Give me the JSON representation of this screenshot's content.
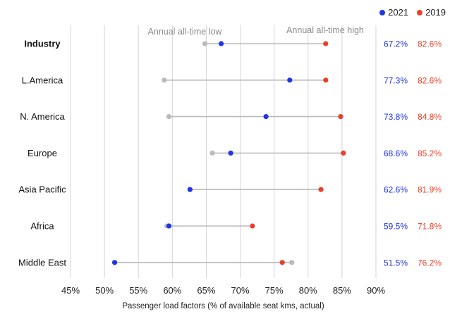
{
  "chart_data": {
    "type": "dumbbell",
    "xlabel": "Passenger load factors (% of available seat kms, actual)",
    "xlim": [
      45,
      90
    ],
    "x_ticks": [
      "45%",
      "50%",
      "55%",
      "60%",
      "65%",
      "70%",
      "75%",
      "80%",
      "85%",
      "90%"
    ],
    "grid": "vertical",
    "legend_position": "top-right",
    "annotations": [
      "Annual all-time low",
      "Annual all-time high"
    ],
    "series": [
      {
        "name": "2021",
        "color": "#1f35e8"
      },
      {
        "name": "2019",
        "color": "#e8402a"
      }
    ],
    "range_color": "#bbbbbb",
    "rows": [
      {
        "category": "Industry",
        "bold": true,
        "all_time_low": 64.8,
        "v2021": 67.2,
        "v2019": 82.6,
        "label2021": "67.2%",
        "label2019": "82.6%"
      },
      {
        "category": "L.America",
        "all_time_low": 58.8,
        "v2021": 77.3,
        "v2019": 82.6,
        "label2021": "77.3%",
        "label2019": "82.6%"
      },
      {
        "category": "N. America",
        "all_time_low": 59.5,
        "v2021": 73.8,
        "v2019": 84.8,
        "label2021": "73.8%",
        "label2019": "84.8%"
      },
      {
        "category": "Europe",
        "all_time_low": 65.9,
        "v2021": 68.6,
        "v2019": 85.2,
        "label2021": "68.6%",
        "label2019": "85.2%"
      },
      {
        "category": "Asia Pacific",
        "all_time_low": 62.6,
        "v2021": 62.6,
        "v2019": 81.9,
        "label2021": "62.6%",
        "label2019": "81.9%"
      },
      {
        "category": "Africa",
        "all_time_low": 59.2,
        "v2021": 59.5,
        "v2019": 71.8,
        "label2021": "59.5%",
        "label2019": "71.8%"
      },
      {
        "category": "Middle East",
        "all_time_low": 51.5,
        "all_time_high": 77.6,
        "v2021": 51.5,
        "v2019": 76.2,
        "label2021": "51.5%",
        "label2019": "76.2%"
      }
    ]
  }
}
